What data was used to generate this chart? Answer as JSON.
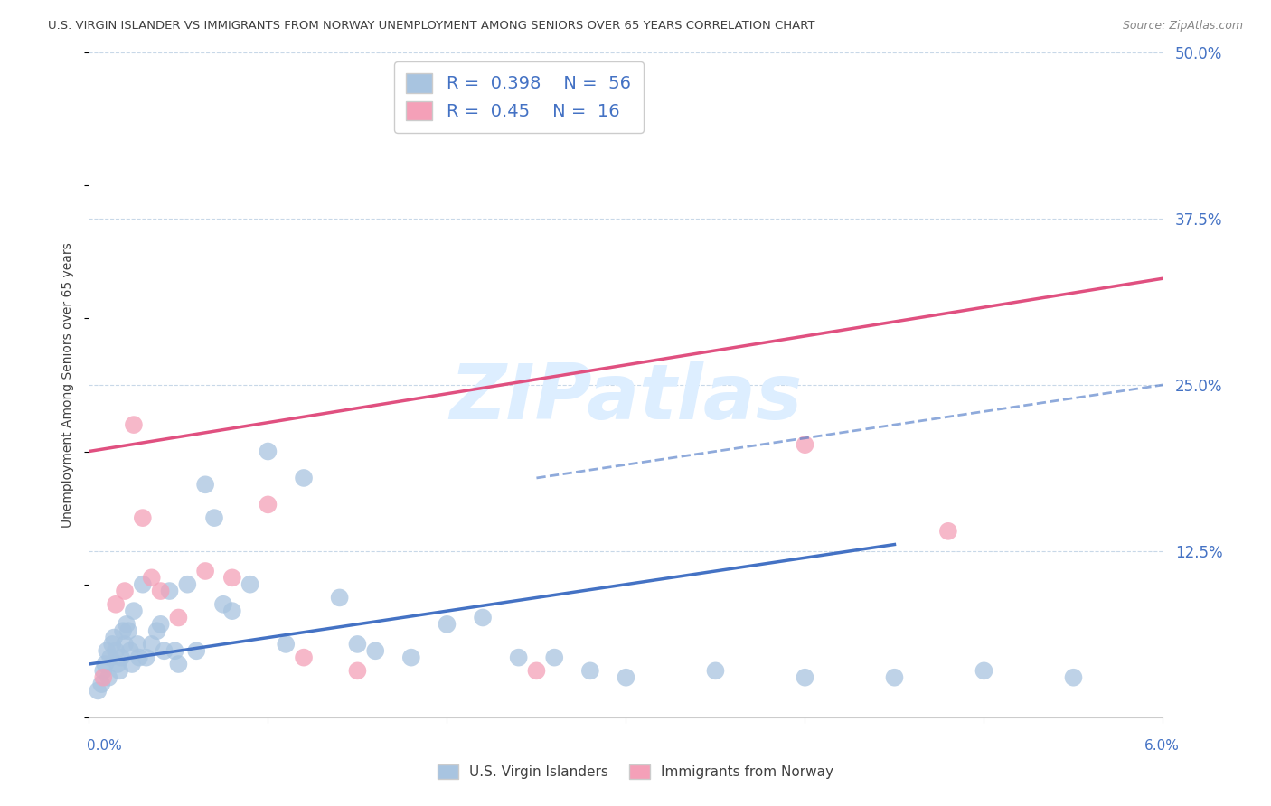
{
  "title": "U.S. VIRGIN ISLANDER VS IMMIGRANTS FROM NORWAY UNEMPLOYMENT AMONG SENIORS OVER 65 YEARS CORRELATION CHART",
  "source": "Source: ZipAtlas.com",
  "ylabel": "Unemployment Among Seniors over 65 years",
  "xlim": [
    0.0,
    6.0
  ],
  "ylim": [
    0.0,
    50.0
  ],
  "yticks": [
    0,
    12.5,
    25.0,
    37.5,
    50.0
  ],
  "ytick_labels": [
    "",
    "12.5%",
    "25.0%",
    "37.5%",
    "50.0%"
  ],
  "blue_R": 0.398,
  "blue_N": 56,
  "pink_R": 0.45,
  "pink_N": 16,
  "blue_color": "#a8c4e0",
  "pink_color": "#f4a0b8",
  "blue_line_color": "#4472c4",
  "pink_line_color": "#e05080",
  "watermark_text": "ZIPatlas",
  "watermark_color": "#ddeeff",
  "legend_label_blue": "U.S. Virgin Islanders",
  "legend_label_pink": "Immigrants from Norway",
  "blue_scatter_x": [
    0.05,
    0.07,
    0.08,
    0.09,
    0.1,
    0.11,
    0.12,
    0.13,
    0.14,
    0.15,
    0.16,
    0.17,
    0.18,
    0.19,
    0.2,
    0.21,
    0.22,
    0.23,
    0.24,
    0.25,
    0.27,
    0.28,
    0.3,
    0.32,
    0.35,
    0.38,
    0.4,
    0.42,
    0.45,
    0.48,
    0.5,
    0.55,
    0.6,
    0.65,
    0.7,
    0.75,
    0.8,
    0.9,
    1.0,
    1.1,
    1.2,
    1.4,
    1.5,
    1.6,
    1.8,
    2.0,
    2.2,
    2.4,
    2.6,
    2.8,
    3.0,
    3.5,
    4.0,
    4.5,
    5.0,
    5.5
  ],
  "blue_scatter_y": [
    2.0,
    2.5,
    3.5,
    4.0,
    5.0,
    3.0,
    4.5,
    5.5,
    6.0,
    5.0,
    4.0,
    3.5,
    4.5,
    6.5,
    5.5,
    7.0,
    6.5,
    5.0,
    4.0,
    8.0,
    5.5,
    4.5,
    10.0,
    4.5,
    5.5,
    6.5,
    7.0,
    5.0,
    9.5,
    5.0,
    4.0,
    10.0,
    5.0,
    17.5,
    15.0,
    8.5,
    8.0,
    10.0,
    20.0,
    5.5,
    18.0,
    9.0,
    5.5,
    5.0,
    4.5,
    7.0,
    7.5,
    4.5,
    4.5,
    3.5,
    3.0,
    3.5,
    3.0,
    3.0,
    3.5,
    3.0
  ],
  "pink_scatter_x": [
    0.08,
    0.15,
    0.2,
    0.25,
    0.3,
    0.35,
    0.4,
    0.5,
    0.65,
    0.8,
    1.0,
    1.2,
    1.5,
    2.5,
    4.0,
    4.8
  ],
  "pink_scatter_y": [
    3.0,
    8.5,
    9.5,
    22.0,
    15.0,
    10.5,
    9.5,
    7.5,
    11.0,
    10.5,
    16.0,
    4.5,
    3.5,
    3.5,
    20.5,
    14.0
  ],
  "blue_solid_line_x": [
    0.0,
    4.5
  ],
  "blue_solid_line_y": [
    4.0,
    13.0
  ],
  "blue_dashed_line_x": [
    2.5,
    6.0
  ],
  "blue_dashed_line_y": [
    18.0,
    25.0
  ],
  "pink_line_x": [
    0.0,
    6.0
  ],
  "pink_line_y": [
    20.0,
    33.0
  ],
  "background_color": "#ffffff",
  "grid_color": "#c8d8e8",
  "title_color": "#404040",
  "source_color": "#888888",
  "axis_label_color": "#404040",
  "ytick_color": "#4472c4"
}
